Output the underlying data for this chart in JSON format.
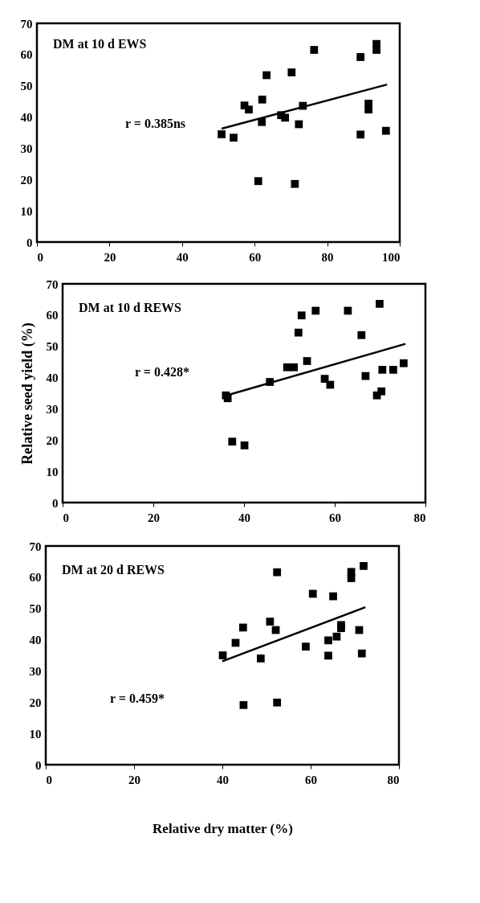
{
  "chart_data": [
    {
      "type": "scatter",
      "title": "DM at 10 d EWS",
      "annotations": [
        "r = 0.385ns"
      ],
      "grid": false,
      "xlim": [
        0,
        100
      ],
      "xticks": [
        0,
        20,
        40,
        60,
        80,
        100
      ],
      "ylim": [
        0,
        70
      ],
      "yticks": [
        0,
        10,
        20,
        30,
        40,
        50,
        60,
        70
      ],
      "series": [
        {
          "color": "#000000",
          "marker": "square",
          "x": [
            50.9,
            54.2,
            57.2,
            58.4,
            61.0,
            62.0,
            62.1,
            63.3,
            67.3,
            68.4,
            70.2,
            71.1,
            72.2,
            73.3,
            76.4,
            89.2,
            89.2,
            91.4,
            91.4,
            93.6,
            93.6,
            96.2
          ],
          "values": [
            34.5,
            33.4,
            43.7,
            42.4,
            19.5,
            38.4,
            45.6,
            53.4,
            40.6,
            39.8,
            54.3,
            18.6,
            37.7,
            43.6,
            61.5,
            59.2,
            34.4,
            44.3,
            42.4,
            63.4,
            61.5,
            35.6
          ]
        },
        {
          "type": "line",
          "color": "#000000",
          "x": [
            50.9,
            96.5
          ],
          "values": [
            36.3,
            50.4
          ]
        }
      ]
    },
    {
      "type": "scatter",
      "title": "DM at 10 d REWS",
      "annotations": [
        "r = 0.428*"
      ],
      "ylabel": "Relative seed yield (%)",
      "grid": false,
      "xlim": [
        0,
        80
      ],
      "xticks": [
        0,
        20,
        40,
        60,
        80
      ],
      "ylim": [
        0,
        70
      ],
      "yticks": [
        0,
        10,
        20,
        30,
        40,
        50,
        60,
        70
      ],
      "series": [
        {
          "color": "#000000",
          "marker": "square",
          "x": [
            36.0,
            36.4,
            37.4,
            40.1,
            45.7,
            49.5,
            51.0,
            52.0,
            52.7,
            53.9,
            55.8,
            57.8,
            59.0,
            62.9,
            65.9,
            66.8,
            69.3,
            69.9,
            70.3,
            70.5,
            72.9,
            75.2
          ],
          "values": [
            34.3,
            33.4,
            19.5,
            18.3,
            38.6,
            43.3,
            43.3,
            54.4,
            59.9,
            45.3,
            61.4,
            39.6,
            37.7,
            61.4,
            53.6,
            40.5,
            34.3,
            63.6,
            35.6,
            42.5,
            42.5,
            44.6
          ]
        },
        {
          "type": "line",
          "color": "#000000",
          "x": [
            36.6,
            75.6
          ],
          "values": [
            34.5,
            50.8
          ]
        }
      ]
    },
    {
      "type": "scatter",
      "title": "DM at 20 d REWS",
      "annotations": [
        "r = 0.459*"
      ],
      "xlabel": "Relative dry matter (%)",
      "grid": false,
      "xlim": [
        0,
        80
      ],
      "xticks": [
        0,
        20,
        40,
        60,
        80
      ],
      "ylim": [
        0,
        70
      ],
      "yticks": [
        0,
        10,
        20,
        30,
        40,
        50,
        60,
        70
      ],
      "series": [
        {
          "color": "#000000",
          "marker": "square",
          "x": [
            40.1,
            43.0,
            44.7,
            44.8,
            48.7,
            50.8,
            52.1,
            52.4,
            52.4,
            58.9,
            60.5,
            64.0,
            64.0,
            65.1,
            65.9,
            66.9,
            66.9,
            69.2,
            69.2,
            71.0,
            71.6,
            72.0
          ],
          "values": [
            35.0,
            39.0,
            43.9,
            19.1,
            34.0,
            45.8,
            43.1,
            61.6,
            19.9,
            37.8,
            54.7,
            39.8,
            34.9,
            53.9,
            41.0,
            44.7,
            43.7,
            61.7,
            59.7,
            43.1,
            35.6,
            63.6
          ]
        },
        {
          "type": "line",
          "color": "#000000",
          "x": [
            40.0,
            72.4
          ],
          "values": [
            33.1,
            50.4
          ]
        }
      ]
    }
  ]
}
